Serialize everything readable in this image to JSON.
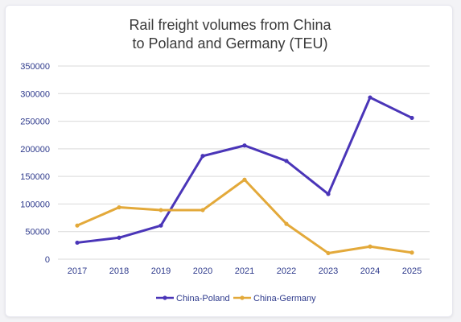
{
  "chart_data": {
    "type": "line",
    "title": [
      "Rail freight volumes from China",
      "to Poland and Germany (TEU)"
    ],
    "x": [
      "2017",
      "2018",
      "2019",
      "2020",
      "2021",
      "2022",
      "2023",
      "2024",
      "2025"
    ],
    "ylim": [
      0,
      350000
    ],
    "yticks": [
      "0",
      "50000",
      "100000",
      "150000",
      "200000",
      "250000",
      "300000",
      "350000"
    ],
    "grid": true,
    "legend_position": "bottom",
    "series": [
      {
        "name": "China-Poland",
        "color": "#4a35b8",
        "values": [
          30000,
          39000,
          61000,
          187000,
          206000,
          178000,
          118000,
          293000,
          256000
        ]
      },
      {
        "name": "China-Germany",
        "color": "#e3a93a",
        "values": [
          61000,
          94000,
          89000,
          89000,
          144000,
          64000,
          11000,
          23000,
          12000
        ]
      }
    ]
  }
}
